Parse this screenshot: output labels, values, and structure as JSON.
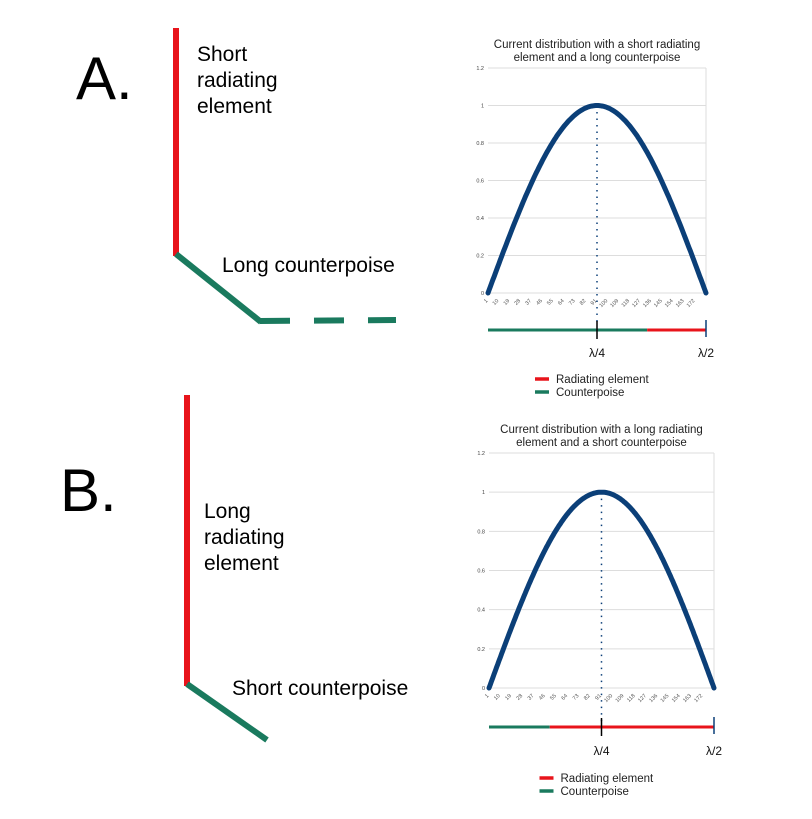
{
  "panels": [
    {
      "letter": "A.",
      "radiator_label": "Short radiating element",
      "counterpoise_label": "Long counterpoise"
    },
    {
      "letter": "B.",
      "radiator_label": "Long radiating element",
      "counterpoise_label": "Short counterpoise"
    }
  ],
  "colors": {
    "radiating": "#e8141b",
    "counterpoise": "#1a7a5e",
    "curve": "#0b3f78"
  },
  "chart_data": [
    {
      "type": "line",
      "title": "Current distribution with a short radiating element and a long counterpoise",
      "title_lines": [
        "Current distribution with a short radiating",
        "element and a long counterpoise"
      ],
      "x_ticks": [
        "1",
        "10",
        "19",
        "28",
        "37",
        "46",
        "55",
        "64",
        "73",
        "82",
        "91",
        "100",
        "109",
        "118",
        "127",
        "136",
        "145",
        "154",
        "163",
        "172"
      ],
      "y_ticks": [
        "0",
        "0.2",
        "0.4",
        "0.6",
        "0.8",
        "1",
        "1.2"
      ],
      "ylim": [
        0,
        1.2
      ],
      "xlim": [
        1,
        181
      ],
      "series": [
        {
          "name": "Current",
          "function": "sin(pi*(x-1)/180)"
        }
      ],
      "marker_x": 91,
      "counterpoise_fraction": 0.73,
      "markers": [
        "λ/4",
        "λ/2"
      ],
      "legend": [
        "Radiating element",
        "Counterpoise"
      ]
    },
    {
      "type": "line",
      "title": "Current distribution with a long radiating element and a short counterpoise",
      "title_lines": [
        "Current distribution with a long radiating",
        "element and a short counterpoise"
      ],
      "x_ticks": [
        "1",
        "10",
        "19",
        "28",
        "37",
        "46",
        "55",
        "64",
        "73",
        "82",
        "91",
        "100",
        "109",
        "118",
        "127",
        "136",
        "145",
        "154",
        "163",
        "172"
      ],
      "y_ticks": [
        "0",
        "0.2",
        "0.4",
        "0.6",
        "0.8",
        "1",
        "1.2"
      ],
      "ylim": [
        0,
        1.2
      ],
      "xlim": [
        1,
        181
      ],
      "series": [
        {
          "name": "Current",
          "function": "sin(pi*(x-1)/180)"
        }
      ],
      "marker_x": 91,
      "counterpoise_fraction": 0.27,
      "markers": [
        "λ/4",
        "λ/2"
      ],
      "legend": [
        "Radiating element",
        "Counterpoise"
      ]
    }
  ]
}
